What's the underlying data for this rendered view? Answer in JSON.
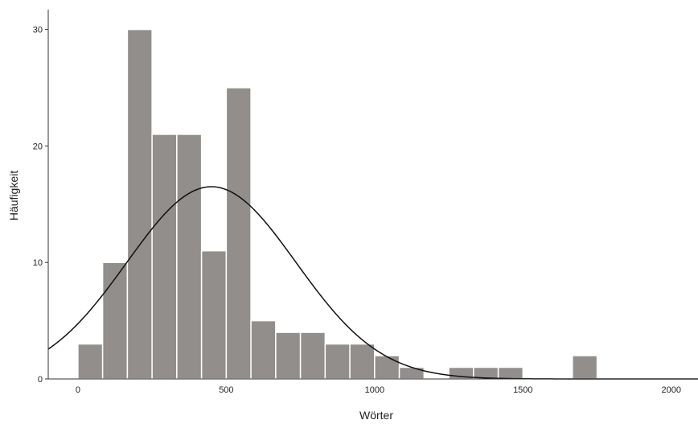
{
  "chart_data": {
    "type": "bar",
    "subtype": "histogram",
    "xlabel": "Wörter",
    "ylabel": "Häufigkeit",
    "xlim": [
      -100,
      2090
    ],
    "ylim": [
      0,
      31.7
    ],
    "x_ticks": [
      0,
      500,
      1000,
      1500,
      2000
    ],
    "y_ticks": [
      0,
      10,
      20,
      30
    ],
    "bin_width": 83.3,
    "bins": [
      {
        "start": 0,
        "end": 83.3,
        "count": 3
      },
      {
        "start": 83.3,
        "end": 166.7,
        "count": 10
      },
      {
        "start": 166.7,
        "end": 250,
        "count": 30
      },
      {
        "start": 250,
        "end": 333.3,
        "count": 21
      },
      {
        "start": 333.3,
        "end": 416.7,
        "count": 21
      },
      {
        "start": 416.7,
        "end": 500,
        "count": 11
      },
      {
        "start": 500,
        "end": 583.3,
        "count": 25
      },
      {
        "start": 583.3,
        "end": 666.7,
        "count": 5
      },
      {
        "start": 666.7,
        "end": 750,
        "count": 4
      },
      {
        "start": 750,
        "end": 833.3,
        "count": 4
      },
      {
        "start": 833.3,
        "end": 916.7,
        "count": 3
      },
      {
        "start": 916.7,
        "end": 1000,
        "count": 3
      },
      {
        "start": 1000,
        "end": 1083.3,
        "count": 2
      },
      {
        "start": 1083.3,
        "end": 1166.7,
        "count": 1
      },
      {
        "start": 1250,
        "end": 1333.3,
        "count": 1
      },
      {
        "start": 1333.3,
        "end": 1416.7,
        "count": 1
      },
      {
        "start": 1416.7,
        "end": 1500,
        "count": 1
      },
      {
        "start": 1666.7,
        "end": 1750,
        "count": 2
      }
    ],
    "normal_curve": {
      "mean": 450,
      "std": 285,
      "peak": 16.5
    },
    "grid": false,
    "colors": {
      "bar": "#918e8c",
      "bar_edge": "#ffffff",
      "curve": "#111111",
      "axis": "#333333"
    }
  }
}
